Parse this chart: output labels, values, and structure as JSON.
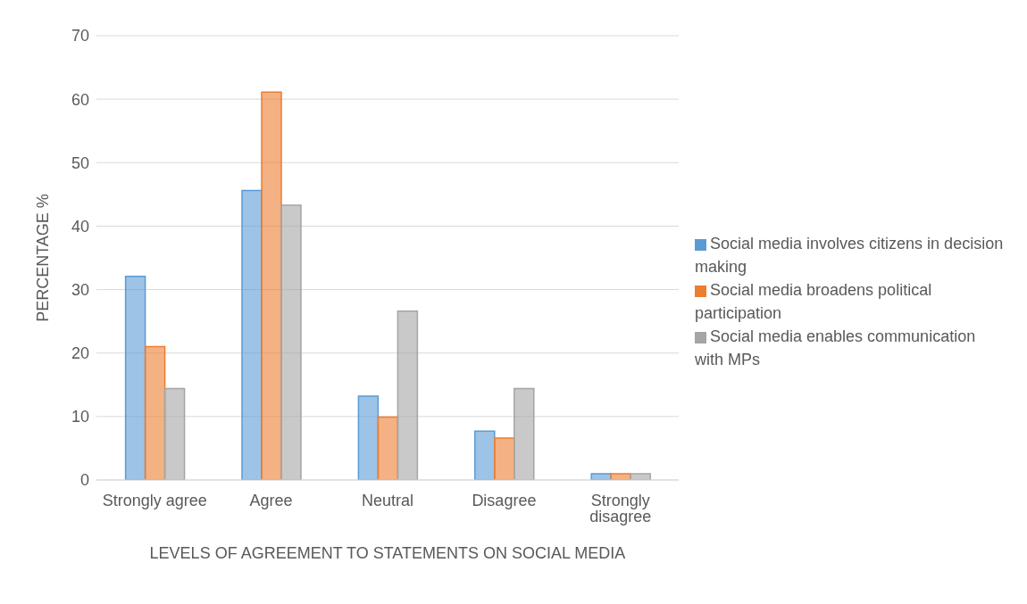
{
  "chart_data": {
    "type": "bar",
    "xlabel": "LEVELS OF AGREEMENT TO STATEMENTS ON SOCIAL MEDIA",
    "ylabel": "PERCENTAGE %",
    "categories": [
      "Strongly agree",
      "Agree",
      "Neutral",
      "Disagree",
      "Strongly disagree"
    ],
    "series": [
      {
        "name": "Social media involves citizens in decision making",
        "color": "#5b9bd5",
        "values": [
          32.1,
          45.6,
          13.2,
          7.7,
          1.0
        ]
      },
      {
        "name": "Social media broadens political participation",
        "color": "#ed7d31",
        "values": [
          21.0,
          61.1,
          9.9,
          6.6,
          1.0
        ]
      },
      {
        "name": "Social media enables communication with MPs",
        "color": "#a5a5a5",
        "values": [
          14.4,
          43.3,
          26.6,
          14.4,
          1.0
        ]
      }
    ],
    "ylim": [
      0,
      70
    ],
    "yticks": [
      0,
      10,
      20,
      30,
      40,
      50,
      60,
      70
    ],
    "grid": "y",
    "legend": "right"
  }
}
